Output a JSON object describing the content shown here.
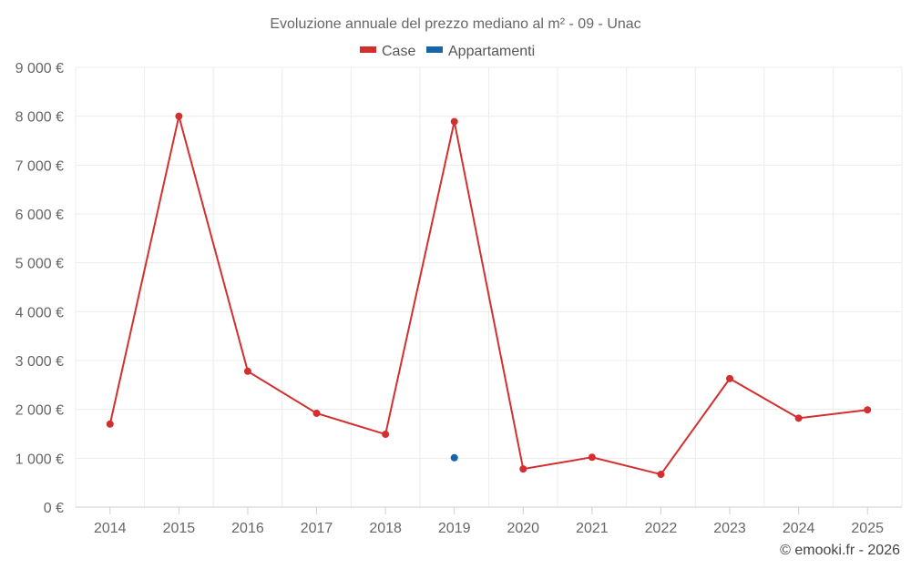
{
  "chart_data": {
    "type": "line",
    "title": "Evoluzione annuale del prezzo mediano al m² - 09 - Unac",
    "categories": [
      "2014",
      "2015",
      "2016",
      "2017",
      "2018",
      "2019",
      "2020",
      "2021",
      "2022",
      "2023",
      "2024",
      "2025"
    ],
    "ylim": [
      0,
      9000
    ],
    "yticks": [
      {
        "value": 0,
        "label": "0 €"
      },
      {
        "value": 1000,
        "label": "1 000 €"
      },
      {
        "value": 2000,
        "label": "2 000 €"
      },
      {
        "value": 3000,
        "label": "3 000 €"
      },
      {
        "value": 4000,
        "label": "4 000 €"
      },
      {
        "value": 5000,
        "label": "5 000 €"
      },
      {
        "value": 6000,
        "label": "6 000 €"
      },
      {
        "value": 7000,
        "label": "7 000 €"
      },
      {
        "value": 8000,
        "label": "8 000 €"
      },
      {
        "value": 9000,
        "label": "9 000 €"
      }
    ],
    "grid": true,
    "legend_position": "top-center",
    "series": [
      {
        "name": "Case",
        "color": "#d32f2f",
        "values": [
          1700,
          8000,
          2780,
          1920,
          1490,
          7890,
          780,
          1020,
          670,
          2630,
          1820,
          1990
        ]
      },
      {
        "name": "Appartamenti",
        "color": "#1565a8",
        "values": [
          null,
          null,
          null,
          null,
          null,
          1010,
          null,
          null,
          null,
          null,
          null,
          null
        ]
      }
    ]
  },
  "credit": "© emooki.fr - 2026"
}
